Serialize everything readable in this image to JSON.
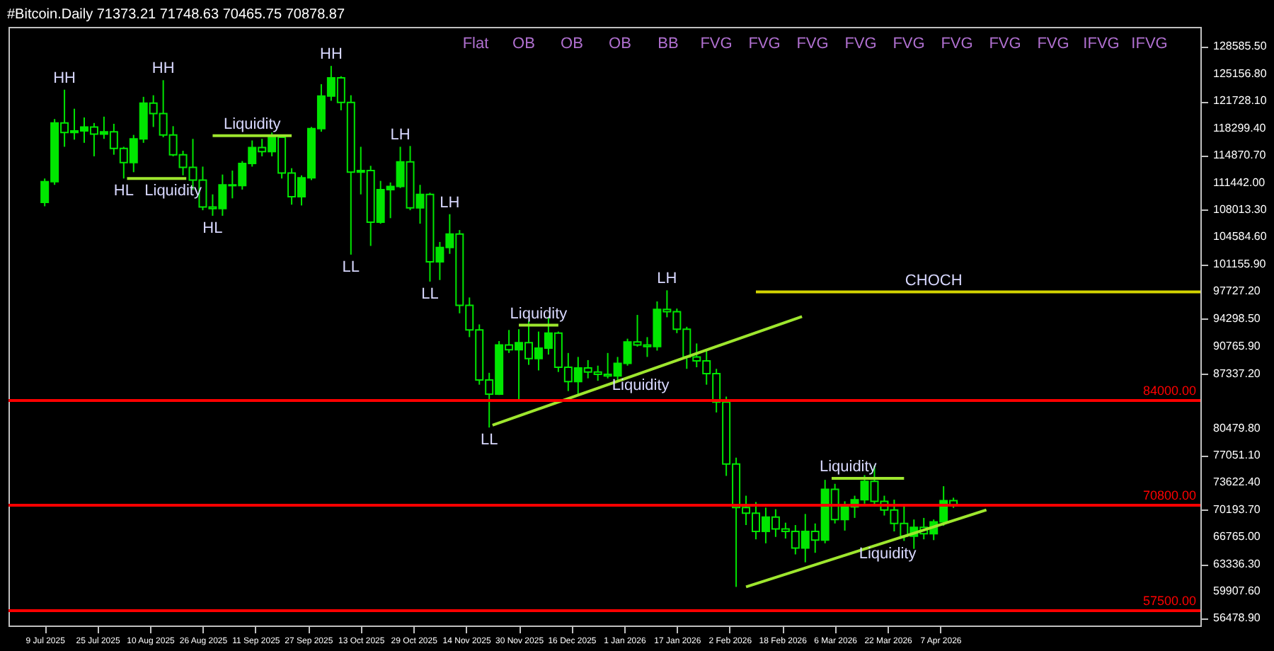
{
  "chart_data": {
    "type": "candlestick",
    "title": "#Bitcoin.Daily  71373.21 71748.63 70465.75 70878.87",
    "color": "#00e600",
    "x": [
      "2025-07-09",
      "2025-07-12",
      "2025-07-15",
      "2025-07-18",
      "2025-07-21",
      "2025-07-24",
      "2025-07-27",
      "2025-07-30",
      "2025-08-02",
      "2025-08-05",
      "2025-08-08",
      "2025-08-11",
      "2025-08-14",
      "2025-08-17",
      "2025-08-20",
      "2025-08-23",
      "2025-08-26",
      "2025-08-29",
      "2025-09-01",
      "2025-09-04",
      "2025-09-07",
      "2025-09-10",
      "2025-09-13",
      "2025-09-16",
      "2025-09-19",
      "2025-09-22",
      "2025-09-25",
      "2025-09-28",
      "2025-10-01",
      "2025-10-04",
      "2025-10-07",
      "2025-10-10",
      "2025-10-13",
      "2025-10-16",
      "2025-10-19",
      "2025-10-22",
      "2025-10-25",
      "2025-10-28",
      "2025-10-31",
      "2025-11-03",
      "2025-11-06",
      "2025-11-09",
      "2025-11-12",
      "2025-11-15",
      "2025-11-18",
      "2025-11-21",
      "2025-11-24",
      "2025-11-27",
      "2025-11-30",
      "2025-12-03",
      "2025-12-06",
      "2025-12-09",
      "2025-12-12",
      "2025-12-15",
      "2025-12-18",
      "2025-12-21",
      "2025-12-24",
      "2025-12-27",
      "2025-12-30",
      "2026-01-02",
      "2026-01-05",
      "2026-01-08",
      "2026-01-11",
      "2026-01-14",
      "2026-01-17",
      "2026-01-20",
      "2026-01-23",
      "2026-01-26",
      "2026-01-29",
      "2026-02-01",
      "2026-02-04",
      "2026-02-07",
      "2026-02-10",
      "2026-02-13",
      "2026-02-16",
      "2026-02-19",
      "2026-02-22",
      "2026-02-25",
      "2026-02-28",
      "2026-03-03",
      "2026-03-06",
      "2026-03-09",
      "2026-03-12",
      "2026-03-15",
      "2026-03-18",
      "2026-03-21",
      "2026-03-24",
      "2026-03-27",
      "2026-03-30",
      "2026-04-02",
      "2026-04-05",
      "2026-04-08",
      "2026-04-11"
    ],
    "ohlc": [
      [
        109000,
        112000,
        108500,
        111600
      ],
      [
        111600,
        119500,
        111200,
        119000
      ],
      [
        119000,
        123200,
        116000,
        117800
      ],
      [
        117800,
        120800,
        116900,
        118000
      ],
      [
        118000,
        119700,
        116500,
        118500
      ],
      [
        118500,
        119000,
        114800,
        117600
      ],
      [
        117600,
        119800,
        117000,
        117900
      ],
      [
        117900,
        118900,
        115000,
        115800
      ],
      [
        115800,
        116000,
        112000,
        114000
      ],
      [
        114000,
        117500,
        112800,
        117000
      ],
      [
        117000,
        122300,
        116500,
        121500
      ],
      [
        121500,
        122500,
        118500,
        120200
      ],
      [
        120200,
        124400,
        117200,
        117500
      ],
      [
        117500,
        118600,
        114800,
        115000
      ],
      [
        115000,
        115500,
        112400,
        113400
      ],
      [
        113400,
        117000,
        110600,
        111800
      ],
      [
        111800,
        113500,
        108000,
        108400
      ],
      [
        108400,
        110000,
        107300,
        108200
      ],
      [
        108200,
        112500,
        107300,
        111200
      ],
      [
        111200,
        113000,
        109500,
        111100
      ],
      [
        111100,
        114200,
        110600,
        113900
      ],
      [
        113900,
        116800,
        113500,
        115900
      ],
      [
        115900,
        117000,
        114800,
        115400
      ],
      [
        115400,
        117800,
        114800,
        117200
      ],
      [
        117200,
        117500,
        112000,
        112700
      ],
      [
        112700,
        113300,
        108700,
        109700
      ],
      [
        109700,
        112400,
        108600,
        112100
      ],
      [
        112100,
        118500,
        111800,
        118300
      ],
      [
        118300,
        123900,
        117900,
        122400
      ],
      [
        122400,
        126200,
        121800,
        124700
      ],
      [
        124700,
        124900,
        120600,
        121600
      ],
      [
        121600,
        122500,
        102400,
        112800
      ],
      [
        112800,
        116000,
        110000,
        113000
      ],
      [
        113000,
        113600,
        103500,
        106500
      ],
      [
        106500,
        111700,
        106300,
        110600
      ],
      [
        110600,
        111500,
        107000,
        111000
      ],
      [
        111000,
        116000,
        110800,
        114100
      ],
      [
        114100,
        116100,
        108000,
        108300
      ],
      [
        108300,
        111200,
        106300,
        110000
      ],
      [
        110000,
        110200,
        99000,
        101500
      ],
      [
        101500,
        104000,
        99200,
        103300
      ],
      [
        103300,
        107500,
        102500,
        105000
      ],
      [
        105000,
        105500,
        95000,
        96000
      ],
      [
        96000,
        97000,
        92000,
        92900
      ],
      [
        92900,
        93600,
        86000,
        86600
      ],
      [
        86600,
        87500,
        80600,
        84800
      ],
      [
        84800,
        91500,
        84700,
        91000
      ],
      [
        91000,
        92900,
        90000,
        90400
      ],
      [
        90400,
        93000,
        83900,
        91300
      ],
      [
        91300,
        94000,
        88500,
        89300
      ],
      [
        89300,
        92700,
        87800,
        90600
      ],
      [
        90600,
        94500,
        89800,
        92500
      ],
      [
        92500,
        92700,
        87600,
        88200
      ],
      [
        88200,
        90000,
        85200,
        86400
      ],
      [
        86400,
        89500,
        84600,
        88100
      ],
      [
        88100,
        89100,
        86800,
        87600
      ],
      [
        87600,
        88400,
        86500,
        87300
      ],
      [
        87300,
        90000,
        86800,
        87100
      ],
      [
        87100,
        89500,
        86500,
        88700
      ],
      [
        88700,
        91800,
        88400,
        91400
      ],
      [
        91400,
        94800,
        90800,
        91000
      ],
      [
        91000,
        92000,
        89500,
        90800
      ],
      [
        90800,
        96500,
        90300,
        95500
      ],
      [
        95500,
        97900,
        94500,
        95200
      ],
      [
        95200,
        95600,
        92500,
        93000
      ],
      [
        93000,
        93300,
        88000,
        89500
      ],
      [
        89500,
        91200,
        88200,
        89000
      ],
      [
        89000,
        90500,
        86000,
        87400
      ],
      [
        87400,
        88000,
        82500,
        83800
      ],
      [
        83800,
        84500,
        74500,
        76000
      ],
      [
        76000,
        76800,
        60500,
        70500
      ],
      [
        70500,
        72000,
        68300,
        69800
      ],
      [
        69800,
        71200,
        66500,
        67500
      ],
      [
        67500,
        70500,
        66000,
        69300
      ],
      [
        69300,
        70300,
        66800,
        67800
      ],
      [
        67800,
        68600,
        66600,
        67500
      ],
      [
        67500,
        68300,
        64600,
        65400
      ],
      [
        65400,
        69700,
        63600,
        67500
      ],
      [
        67500,
        68500,
        64800,
        66400
      ],
      [
        66400,
        74000,
        66000,
        72800
      ],
      [
        72800,
        73500,
        68500,
        69000
      ],
      [
        69000,
        71300,
        67600,
        70600
      ],
      [
        70600,
        72000,
        69200,
        71500
      ],
      [
        71500,
        74600,
        71000,
        73800
      ],
      [
        73800,
        75800,
        70800,
        71300
      ],
      [
        71300,
        72000,
        69500,
        70200
      ],
      [
        70200,
        71500,
        67500,
        68500
      ],
      [
        68500,
        70800,
        66300,
        66900
      ],
      [
        66900,
        69000,
        65300,
        68000
      ],
      [
        68000,
        69200,
        66500,
        67200
      ],
      [
        67200,
        69000,
        66400,
        68700
      ],
      [
        68700,
        73200,
        68200,
        71373.21
      ],
      [
        71373.21,
        71748.63,
        70465.75,
        70878.87
      ]
    ],
    "series": [
      {
        "type": "line",
        "color": "#9ee62e",
        "x": [
          "2025-11-22",
          "2026-02-24"
        ],
        "values": [
          80900,
          94600
        ]
      },
      {
        "type": "line",
        "color": "#9ee62e",
        "x": [
          "2026-02-07",
          "2026-04-21"
        ],
        "values": [
          60500,
          70200
        ]
      },
      {
        "type": "line",
        "color": "#9ee62e",
        "x": [
          "2025-11-30",
          "2025-12-12"
        ],
        "values": [
          93500,
          93500
        ]
      },
      {
        "type": "line",
        "color": "#9ee62e",
        "x": [
          "2025-08-29",
          "2025-09-22"
        ],
        "values": [
          117400,
          117400
        ]
      },
      {
        "type": "line",
        "color": "#9ee62e",
        "x": [
          "2025-08-03",
          "2025-08-21"
        ],
        "values": [
          112000,
          112000
        ]
      },
      {
        "type": "line",
        "color": "#9ee62e",
        "x": [
          "2026-03-05",
          "2026-03-27"
        ],
        "values": [
          74200,
          74200
        ]
      },
      {
        "type": "line",
        "color": "#d4d400",
        "x": [
          "2026-02-10",
          "2026-06-25"
        ],
        "values": [
          97700,
          97700
        ]
      }
    ],
    "ref_lines": [
      {
        "axis": "y",
        "value": 84000,
        "label": "84000.00",
        "color": "#ff0000"
      },
      {
        "axis": "y",
        "value": 70800,
        "label": "70800.00",
        "color": "#ff0000"
      },
      {
        "axis": "y",
        "value": 57500,
        "label": "57500.00",
        "color": "#ff0000"
      }
    ],
    "annotations": [
      {
        "text": "HH",
        "x": "2025-07-15",
        "y": 123200
      },
      {
        "text": "HH",
        "x": "2025-08-14",
        "y": 124400
      },
      {
        "text": "HH",
        "x": "2025-10-04",
        "y": 126200
      },
      {
        "text": "LH",
        "x": "2025-10-25",
        "y": 116000
      },
      {
        "text": "LH",
        "x": "2025-11-09",
        "y": 107500
      },
      {
        "text": "LH",
        "x": "2026-01-14",
        "y": 97900
      },
      {
        "text": "HL",
        "x": "2025-08-02",
        "y": 112000
      },
      {
        "text": "HL",
        "x": "2025-08-29",
        "y": 107300
      },
      {
        "text": "LL",
        "x": "2025-10-10",
        "y": 102400
      },
      {
        "text": "LL",
        "x": "2025-11-03",
        "y": 99000
      },
      {
        "text": "LL",
        "x": "2025-11-21",
        "y": 80600
      },
      {
        "text": "Liquidity",
        "x": "2025-09-10",
        "y": 117400
      },
      {
        "text": "Liquidity",
        "x": "2025-08-17",
        "y": 112000
      },
      {
        "text": "Liquidity",
        "x": "2025-12-06",
        "y": 93500
      },
      {
        "text": "Liquidity",
        "x": "2026-01-06",
        "y": 87460
      },
      {
        "text": "Liquidity",
        "x": "2026-03-10",
        "y": 74200
      },
      {
        "text": "Liquidity",
        "x": "2026-03-22",
        "y": 66210
      },
      {
        "text": "CHOCH",
        "x": "2026-04-05",
        "y": 97700
      },
      "Flat",
      "OB",
      "OB",
      "OB",
      "BB",
      "FVG",
      "FVG",
      "FVG",
      "FVG",
      "FVG",
      "FVG",
      "FVG",
      "FVG",
      "IFVG",
      "IFVG"
    ],
    "xlim": [
      "2025-06-28",
      "2026-06-25"
    ],
    "xticks": [
      {
        "value": "2025-07-09",
        "label": "9 Jul 2025"
      },
      {
        "value": "2025-07-25",
        "label": "25 Jul 2025"
      },
      {
        "value": "2025-08-10",
        "label": "10 Aug 2025"
      },
      {
        "value": "2025-08-26",
        "label": "26 Aug 2025"
      },
      {
        "value": "2025-09-11",
        "label": "11 Sep 2025"
      },
      {
        "value": "2025-09-27",
        "label": "27 Sep 2025"
      },
      {
        "value": "2025-10-13",
        "label": "13 Oct 2025"
      },
      {
        "value": "2025-10-29",
        "label": "29 Oct 2025"
      },
      {
        "value": "2025-11-14",
        "label": "14 Nov 2025"
      },
      {
        "value": "2025-11-30",
        "label": "30 Nov 2025"
      },
      {
        "value": "2025-12-16",
        "label": "16 Dec 2025"
      },
      {
        "value": "2026-01-01",
        "label": "1 Jan 2026"
      },
      {
        "value": "2026-01-17",
        "label": "17 Jan 2026"
      },
      {
        "value": "2026-02-02",
        "label": "2 Feb 2026"
      },
      {
        "value": "2026-02-18",
        "label": "18 Feb 2026"
      },
      {
        "value": "2026-03-06",
        "label": "6 Mar 2026"
      },
      {
        "value": "2026-03-22",
        "label": "22 Mar 2026"
      },
      {
        "value": "2026-04-07",
        "label": "7 Apr 2026"
      }
    ],
    "ylim": [
      55630,
      131120
    ],
    "yticks": [
      {
        "value": 128585.5,
        "label": "128585.50"
      },
      {
        "value": 125156.8,
        "label": "125156.80"
      },
      {
        "value": 121728.1,
        "label": "121728.10"
      },
      {
        "value": 118299.4,
        "label": "118299.40"
      },
      {
        "value": 114870.7,
        "label": "114870.70"
      },
      {
        "value": 111442,
        "label": "111442.00"
      },
      {
        "value": 108013.3,
        "label": "108013.30"
      },
      {
        "value": 104584.6,
        "label": "104584.60"
      },
      {
        "value": 101155.9,
        "label": "101155.90"
      },
      {
        "value": 97727.2,
        "label": "97727.20"
      },
      {
        "value": 94298.5,
        "label": "94298.50"
      },
      {
        "value": 90765.9,
        "label": "90765.90"
      },
      {
        "value": 87337.2,
        "label": "87337.20"
      },
      {
        "value": 80479.8,
        "label": "80479.80"
      },
      {
        "value": 77051.1,
        "label": "77051.10"
      },
      {
        "value": 73622.4,
        "label": "73622.40"
      },
      {
        "value": 70193.7,
        "label": "70193.70"
      },
      {
        "value": 66765,
        "label": "66765.00"
      },
      {
        "value": 63336.3,
        "label": "63336.30"
      },
      {
        "value": 59907.6,
        "label": "59907.60"
      },
      {
        "value": 56478.9,
        "label": "56478.90"
      }
    ],
    "grid": false
  }
}
